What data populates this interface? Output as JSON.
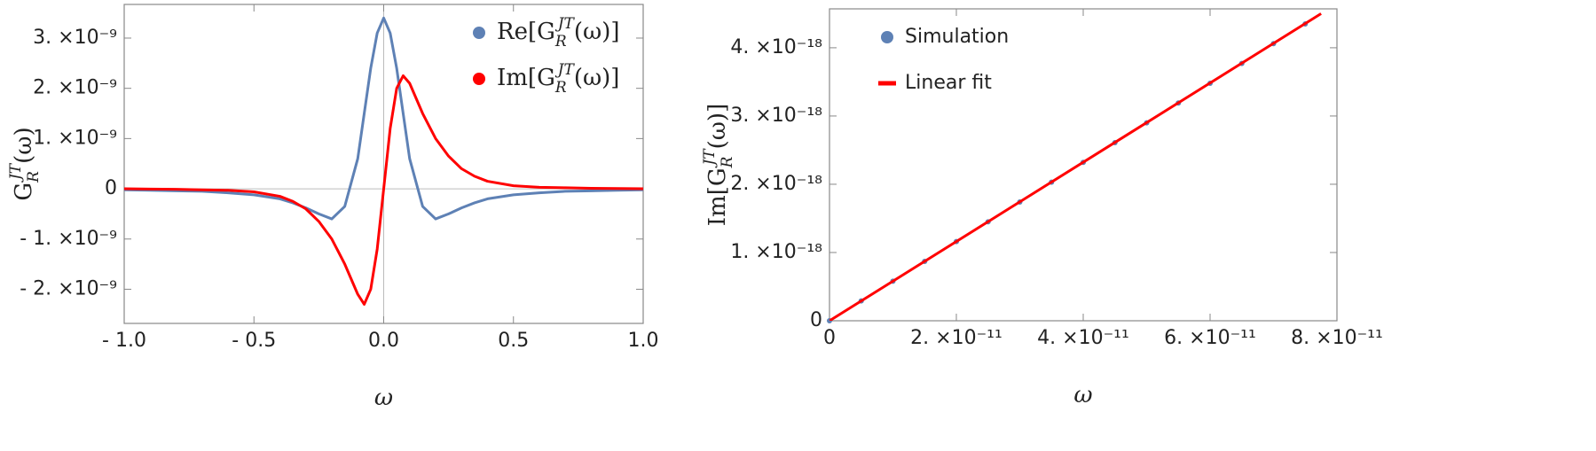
{
  "chart_data": [
    {
      "type": "line",
      "ylabel": [
        "G",
        "R",
        "JT",
        "(ω)"
      ],
      "xlabel": "ω",
      "x": [
        -1,
        -0.9,
        -0.8,
        -0.7,
        -0.6,
        -0.5,
        -0.4,
        -0.35,
        -0.3,
        -0.25,
        -0.2,
        -0.15,
        -0.1,
        -0.075,
        -0.05,
        -0.025,
        0,
        0.025,
        0.05,
        0.075,
        0.1,
        0.15,
        0.2,
        0.25,
        0.3,
        0.35,
        0.4,
        0.5,
        0.6,
        0.7,
        0.8,
        0.9,
        1
      ],
      "series": [
        {
          "name": [
            "Re[G",
            "R",
            "JT",
            "(ω)]"
          ],
          "color": "#5e81b5",
          "mode": "lines",
          "legend_marker": "dot",
          "values": [
            -2e-11,
            -3e-11,
            -4e-11,
            -5e-11,
            -8e-11,
            -1.2e-10,
            -2e-10,
            -2.8e-10,
            -3.8e-10,
            -5e-10,
            -6e-10,
            -3.5e-10,
            6e-10,
            1.5e-09,
            2.4e-09,
            3.1e-09,
            3.4e-09,
            3.1e-09,
            2.4e-09,
            1.5e-09,
            6e-10,
            -3.5e-10,
            -6e-10,
            -5e-10,
            -3.8e-10,
            -2.8e-10,
            -2e-10,
            -1.2e-10,
            -8e-11,
            -5e-11,
            -4e-11,
            -3e-11,
            -2e-11
          ]
        },
        {
          "name": [
            "Im[G",
            "R",
            "JT",
            "(ω)]"
          ],
          "color": "#ff0000",
          "mode": "lines",
          "legend_marker": "dot",
          "values": [
            0,
            -5e-12,
            -1e-11,
            -2e-11,
            -3e-11,
            -6e-11,
            -1.5e-10,
            -2.5e-10,
            -4e-10,
            -6.5e-10,
            -1e-09,
            -1.5e-09,
            -2.1e-09,
            -2.3e-09,
            -2e-09,
            -1.2e-09,
            0,
            1.2e-09,
            2e-09,
            2.25e-09,
            2.1e-09,
            1.5e-09,
            1e-09,
            6.5e-10,
            4e-10,
            2.5e-10,
            1.5e-10,
            6e-11,
            3e-11,
            2e-11,
            1e-11,
            5e-12,
            0
          ]
        }
      ],
      "xlim": [
        -1,
        1
      ],
      "ylim": [
        -2.68e-09,
        3.67e-09
      ],
      "xticks": [
        {
          "value": -1,
          "label": "- 1.0"
        },
        {
          "value": -0.5,
          "label": "- 0.5"
        },
        {
          "value": 0,
          "label": "0.0"
        },
        0.5,
        {
          "value": 1,
          "label": "1.0"
        }
      ],
      "yticks": [
        {
          "value": -2e-09,
          "label": "- 2. ×10⁻⁹"
        },
        {
          "value": -1e-09,
          "label": "- 1. ×10⁻⁹"
        },
        0,
        {
          "value": 1e-09,
          "label": "1. ×10⁻⁹"
        },
        {
          "value": 2e-09,
          "label": "2. ×10⁻⁹"
        },
        {
          "value": 3e-09,
          "label": "3. ×10⁻⁹"
        }
      ],
      "zero_axes": true,
      "legend": "upper right"
    },
    {
      "type": "line",
      "ylabel": [
        "Im[G",
        "R",
        "JT",
        "(ω)]"
      ],
      "xlabel": "ω",
      "series": [
        {
          "name": "Simulation",
          "color": "#5e81b5",
          "mode": "markers",
          "legend_marker": "dot",
          "x": [
            0,
            5e-12,
            1e-11,
            1.5e-11,
            2e-11,
            2.5e-11,
            3e-11,
            3.5e-11,
            4e-11,
            4.5e-11,
            5e-11,
            5.5e-11,
            6e-11,
            6.5e-11,
            7e-11,
            7.5e-11
          ],
          "values": [
            0,
            2.9e-19,
            5.8e-19,
            8.7e-19,
            1.16e-18,
            1.45e-18,
            1.74e-18,
            2.03e-18,
            2.32e-18,
            2.61e-18,
            2.9e-18,
            3.19e-18,
            3.48e-18,
            3.77e-18,
            4.06e-18,
            4.35e-18
          ]
        },
        {
          "name": "Linear fit",
          "color": "#ff0000",
          "mode": "lines",
          "legend_marker": "line",
          "x": [
            0,
            7.75e-11
          ],
          "values": [
            0,
            4.5e-18
          ]
        }
      ],
      "xlim": [
        0,
        8e-11
      ],
      "ylim": [
        0,
        4.57e-18
      ],
      "xticks": [
        0,
        {
          "value": 2e-11,
          "label": "2. ×10⁻¹¹"
        },
        {
          "value": 4e-11,
          "label": "4. ×10⁻¹¹"
        },
        {
          "value": 6e-11,
          "label": "6. ×10⁻¹¹"
        },
        {
          "value": 8e-11,
          "label": "8. ×10⁻¹¹"
        }
      ],
      "yticks": [
        0,
        {
          "value": 1e-18,
          "label": "1. ×10⁻¹⁸"
        },
        {
          "value": 2e-18,
          "label": "2. ×10⁻¹⁸"
        },
        {
          "value": 3e-18,
          "label": "3. ×10⁻¹⁸"
        },
        {
          "value": 4e-18,
          "label": "4. ×10⁻¹⁸"
        }
      ],
      "zero_axes": false,
      "legend": "upper left"
    }
  ]
}
